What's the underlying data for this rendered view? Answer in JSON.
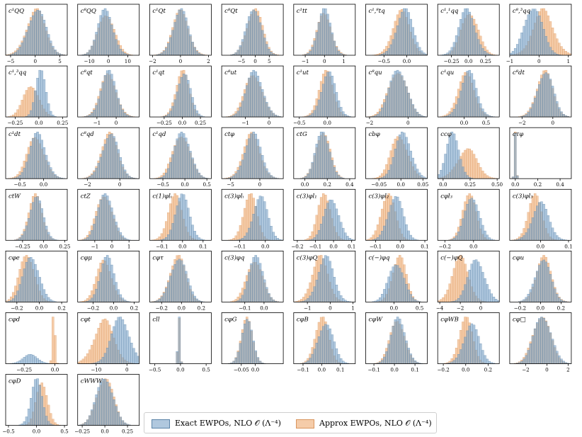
{
  "chart_data": {
    "type": "histogram-grid",
    "title": "",
    "colors": {
      "exact": "#7ba3c8",
      "approx": "#f1bb8c",
      "exact_edge": "#5b84a8",
      "approx_edge": "#d9955d"
    },
    "legend": {
      "position": "bottom",
      "entries": [
        {
          "key": "exact",
          "label": "Exact EWPOs, NLO 𝒪 (Λ⁻⁴)"
        },
        {
          "key": "approx",
          "label": "Approx EWPOs, NLO 𝒪 (Λ⁻⁴)"
        }
      ]
    },
    "panels": [
      {
        "name": "c¹QQ",
        "xlim": [
          -6,
          6.5
        ],
        "ticks": [
          -5,
          0,
          5
        ],
        "exact": {
          "mu": 0.3,
          "sigma": 1.8
        },
        "approx": {
          "mu": 0.1,
          "sigma": 1.9
        }
      },
      {
        "name": "c⁸QQ",
        "xlim": [
          -16,
          16
        ],
        "ticks": [
          -10,
          0,
          10
        ],
        "exact": {
          "mu": -1.5,
          "sigma": 4.0
        },
        "approx": {
          "mu": -1.0,
          "sigma": 4.2
        }
      },
      {
        "name": "c¹Qt",
        "xlim": [
          -2.2,
          2.2
        ],
        "ticks": [
          -2,
          0,
          2
        ],
        "exact": {
          "mu": 0.0,
          "sigma": 0.55
        },
        "approx": {
          "mu": 0.0,
          "sigma": 0.58
        }
      },
      {
        "name": "c⁸Qt",
        "xlim": [
          -12,
          10
        ],
        "ticks": [
          -5,
          0,
          5
        ],
        "exact": {
          "mu": -0.5,
          "sigma": 2.6
        },
        "approx": {
          "mu": -0.3,
          "sigma": 2.7
        }
      },
      {
        "name": "c¹tt",
        "xlim": [
          -1.6,
          1.6
        ],
        "ticks": [
          -1,
          0,
          1
        ],
        "exact": {
          "mu": 0.0,
          "sigma": 0.35
        },
        "approx": {
          "mu": 0.0,
          "sigma": 0.37
        }
      },
      {
        "name": "c¹,⁸tq",
        "xlim": [
          -0.9,
          0.45
        ],
        "ticks": [
          -0.5,
          0.0
        ],
        "exact": {
          "mu": -0.05,
          "sigma": 0.18
        },
        "approx": {
          "mu": -0.12,
          "sigma": 0.19
        }
      },
      {
        "name": "c¹,¹qq",
        "xlim": [
          -0.45,
          0.45
        ],
        "ticks": [
          -0.25,
          0.0,
          0.25
        ],
        "exact": {
          "mu": -0.02,
          "sigma": 0.12
        },
        "approx": {
          "mu": 0.02,
          "sigma": 0.12
        }
      },
      {
        "name": "c⁸,³qq",
        "xlim": [
          -1.0,
          1.1
        ],
        "ticks": [
          -1,
          0,
          1
        ],
        "exact": {
          "mu": -0.2,
          "sigma": 0.3
        },
        "approx": {
          "mu": 0.15,
          "sigma": 0.35
        }
      },
      {
        "name": "c¹,³qq",
        "xlim": [
          -0.35,
          0.3
        ],
        "ticks": [
          -0.25,
          0.0,
          0.25
        ],
        "exact": {
          "mu": 0.02,
          "sigma": 0.05
        },
        "approx": {
          "mu": -0.08,
          "sigma": 0.08
        }
      },
      {
        "name": "c⁸qt",
        "xlim": [
          -2.0,
          1.2
        ],
        "ticks": [
          -1,
          0
        ],
        "exact": {
          "mu": -0.4,
          "sigma": 0.4
        },
        "approx": {
          "mu": -0.4,
          "sigma": 0.42
        }
      },
      {
        "name": "c¹qt",
        "xlim": [
          -0.45,
          0.4
        ],
        "ticks": [
          -0.25,
          0.0,
          0.25
        ],
        "exact": {
          "mu": 0.02,
          "sigma": 0.09
        },
        "approx": {
          "mu": 0.0,
          "sigma": 0.09
        }
      },
      {
        "name": "c⁸ut",
        "xlim": [
          -2.0,
          0.6
        ],
        "ticks": [
          -1,
          0
        ],
        "exact": {
          "mu": -0.6,
          "sigma": 0.35
        },
        "approx": {
          "mu": -0.65,
          "sigma": 0.36
        }
      },
      {
        "name": "c¹ut",
        "xlim": [
          -0.6,
          0.5
        ],
        "ticks": [
          -0.5,
          0.0
        ],
        "exact": {
          "mu": 0.02,
          "sigma": 0.13
        },
        "approx": {
          "mu": -0.02,
          "sigma": 0.13
        }
      },
      {
        "name": "c⁸qu",
        "xlim": [
          -2.2,
          1.0
        ],
        "ticks": [
          -2,
          0
        ],
        "exact": {
          "mu": -0.5,
          "sigma": 0.45
        },
        "approx": {
          "mu": -0.55,
          "sigma": 0.47
        }
      },
      {
        "name": "c¹qu",
        "xlim": [
          -0.6,
          0.8
        ],
        "ticks": [
          0.0,
          0.5
        ],
        "exact": {
          "mu": 0.1,
          "sigma": 0.18
        },
        "approx": {
          "mu": 0.05,
          "sigma": 0.19
        }
      },
      {
        "name": "c⁸dt",
        "xlim": [
          -2.8,
          1.2
        ],
        "ticks": [
          -2,
          0
        ],
        "exact": {
          "mu": -0.5,
          "sigma": 0.5
        },
        "approx": {
          "mu": -0.55,
          "sigma": 0.52
        }
      },
      {
        "name": "c¹dt",
        "xlim": [
          -0.8,
          0.5
        ],
        "ticks": [
          -0.5,
          0.0
        ],
        "exact": {
          "mu": -0.12,
          "sigma": 0.17
        },
        "approx": {
          "mu": -0.16,
          "sigma": 0.18
        }
      },
      {
        "name": "c⁸qd",
        "xlim": [
          -2.6,
          1.2
        ],
        "ticks": [
          -2,
          0
        ],
        "exact": {
          "mu": -0.6,
          "sigma": 0.5
        },
        "approx": {
          "mu": -0.65,
          "sigma": 0.52
        }
      },
      {
        "name": "c¹qd",
        "xlim": [
          -0.8,
          0.6
        ],
        "ticks": [
          -0.5,
          0.0,
          0.5
        ],
        "exact": {
          "mu": -0.05,
          "sigma": 0.18
        },
        "approx": {
          "mu": -0.08,
          "sigma": 0.19
        }
      },
      {
        "name": "ctφ",
        "xlim": [
          -6.5,
          4.0
        ],
        "ticks": [
          -5,
          0
        ],
        "exact": {
          "mu": -1.2,
          "sigma": 1.4
        },
        "approx": {
          "mu": -1.4,
          "sigma": 1.45
        }
      },
      {
        "name": "ctG",
        "xlim": [
          -0.1,
          0.45
        ],
        "ticks": [
          0.0,
          0.2,
          0.4
        ],
        "exact": {
          "mu": 0.16,
          "sigma": 0.06
        },
        "approx": {
          "mu": 0.16,
          "sigma": 0.062
        }
      },
      {
        "name": "cbφ",
        "xlim": [
          -0.08,
          0.06
        ],
        "ticks": [
          -0.05,
          0.0,
          0.05
        ],
        "exact": {
          "mu": 0.006,
          "sigma": 0.018
        },
        "approx": {
          "mu": -0.003,
          "sigma": 0.019
        }
      },
      {
        "name": "ccφ",
        "xlim": [
          -0.05,
          0.52
        ],
        "ticks": [
          0.0,
          0.25,
          0.5
        ],
        "exact": {
          "mu": 0.09,
          "sigma": 0.06
        },
        "approx": {
          "mu": 0.22,
          "sigma": 0.09
        }
      },
      {
        "name": "cτφ",
        "xlim": [
          -0.05,
          0.5
        ],
        "ticks": [
          0.0,
          0.2,
          0.4
        ],
        "exact": {
          "mu": 0.0,
          "sigma": 0.008
        },
        "approx": {
          "mu": 0.0,
          "sigma": 0.008
        }
      },
      {
        "name": "ctW",
        "xlim": [
          -0.45,
          0.28
        ],
        "ticks": [
          -0.25,
          0.0,
          0.25
        ],
        "exact": {
          "mu": -0.09,
          "sigma": 0.08
        },
        "approx": {
          "mu": -0.1,
          "sigma": 0.08
        }
      },
      {
        "name": "ctZ",
        "xlim": [
          -2.0,
          1.6
        ],
        "ticks": [
          -1,
          0,
          1
        ],
        "exact": {
          "mu": -0.35,
          "sigma": 0.45
        },
        "approx": {
          "mu": -0.45,
          "sigma": 0.45
        }
      },
      {
        "name": "c(1)φlᵢ",
        "xlim": [
          -0.16,
          0.14
        ],
        "ticks": [
          -0.1,
          0.0,
          0.1
        ],
        "exact": {
          "mu": 0.0,
          "sigma": 0.035
        },
        "approx": {
          "mu": -0.035,
          "sigma": 0.035
        }
      },
      {
        "name": "c(3)φlᵢ",
        "xlim": [
          -0.17,
          0.07
        ],
        "ticks": [
          -0.1,
          0.0
        ],
        "exact": {
          "mu": -0.02,
          "sigma": 0.028
        },
        "approx": {
          "mu": -0.06,
          "sigma": 0.025
        }
      },
      {
        "name": "c(3)φl₁",
        "xlim": [
          -0.22,
          0.12
        ],
        "ticks": [
          -0.2,
          -0.1,
          0.0,
          0.1
        ],
        "exact": {
          "mu": -0.01,
          "sigma": 0.04
        },
        "approx": {
          "mu": -0.05,
          "sigma": 0.035
        }
      },
      {
        "name": "c(3)φl₂",
        "xlim": [
          -0.14,
          0.11
        ],
        "ticks": [
          -0.1,
          0.0,
          0.1
        ],
        "exact": {
          "mu": -0.02,
          "sigma": 0.03
        },
        "approx": {
          "mu": -0.05,
          "sigma": 0.028
        }
      },
      {
        "name": "cφl₃",
        "xlim": [
          -0.25,
          0.18
        ],
        "ticks": [
          -0.2,
          0.0
        ],
        "exact": {
          "mu": -0.01,
          "sigma": 0.05
        },
        "approx": {
          "mu": -0.03,
          "sigma": 0.045
        }
      },
      {
        "name": "c(3)φl₃",
        "xlim": [
          -0.11,
          0.11
        ],
        "ticks": [
          0.0,
          0.1
        ],
        "exact": {
          "mu": 0.0,
          "sigma": 0.03
        },
        "approx": {
          "mu": -0.02,
          "sigma": 0.025
        }
      },
      {
        "name": "cφe",
        "xlim": [
          -0.3,
          0.25
        ],
        "ticks": [
          -0.2,
          0.0,
          0.2
        ],
        "exact": {
          "mu": -0.07,
          "sigma": 0.07
        },
        "approx": {
          "mu": -0.11,
          "sigma": 0.065
        }
      },
      {
        "name": "cφμ",
        "xlim": [
          -0.35,
          0.25
        ],
        "ticks": [
          -0.2,
          0.0,
          0.2
        ],
        "exact": {
          "mu": -0.06,
          "sigma": 0.07
        },
        "approx": {
          "mu": -0.09,
          "sigma": 0.075
        }
      },
      {
        "name": "cφτ",
        "xlim": [
          -0.32,
          0.3
        ],
        "ticks": [
          -0.2,
          0.0,
          0.2
        ],
        "exact": {
          "mu": -0.03,
          "sigma": 0.08
        },
        "approx": {
          "mu": -0.04,
          "sigma": 0.08
        }
      },
      {
        "name": "c(3)φq",
        "xlim": [
          -0.22,
          0.1
        ],
        "ticks": [
          -0.1,
          0.0
        ],
        "exact": {
          "mu": -0.04,
          "sigma": 0.035
        },
        "approx": {
          "mu": -0.05,
          "sigma": 0.04
        }
      },
      {
        "name": "c(3)φQ",
        "xlim": [
          -1.6,
          1.1
        ],
        "ticks": [
          -1,
          0,
          1
        ],
        "exact": {
          "mu": -0.2,
          "sigma": 0.35
        },
        "approx": {
          "mu": -0.45,
          "sigma": 0.35
        }
      },
      {
        "name": "c(−)φq",
        "xlim": [
          -0.55,
          0.65
        ],
        "ticks": [
          0.0,
          0.5
        ],
        "exact": {
          "mu": 0.05,
          "sigma": 0.15
        },
        "approx": {
          "mu": 0.1,
          "sigma": 0.13
        }
      },
      {
        "name": "c(−)φQ",
        "xlim": [
          -4.2,
          1.8
        ],
        "ticks": [
          -4,
          -2,
          0
        ],
        "exact": {
          "mu": -0.4,
          "sigma": 0.8
        },
        "approx": {
          "mu": -2.0,
          "sigma": 0.8
        }
      },
      {
        "name": "cφu",
        "xlim": [
          -0.3,
          0.3
        ],
        "ticks": [
          -0.2,
          0.0,
          0.2
        ],
        "exact": {
          "mu": 0.02,
          "sigma": 0.075
        },
        "approx": {
          "mu": 0.03,
          "sigma": 0.075
        }
      },
      {
        "name": "cφd",
        "xlim": [
          -0.4,
          0.1
        ],
        "ticks": [
          -0.25,
          0.0
        ],
        "exact": {
          "mu": -0.2,
          "sigma": 0.06
        },
        "approx": {
          "mu": -0.01,
          "sigma": 0.01
        }
      },
      {
        "name": "cφt",
        "xlim": [
          -16,
          4
        ],
        "ticks": [
          -10,
          0
        ],
        "exact": {
          "mu": -2.0,
          "sigma": 3.0
        },
        "approx": {
          "mu": -7.5,
          "sigma": 3.2
        }
      },
      {
        "name": "cll",
        "xlim": [
          -0.6,
          0.6
        ],
        "ticks": [
          -0.5,
          0.0,
          0.5
        ],
        "exact": {
          "mu": -0.03,
          "sigma": 0.02
        },
        "approx": {
          "mu": -0.03,
          "sigma": 0.02
        }
      },
      {
        "name": "cφG",
        "xlim": [
          -0.12,
          0.1
        ],
        "ticks": [
          -0.05,
          0.0
        ],
        "exact": {
          "mu": -0.03,
          "sigma": 0.02
        },
        "approx": {
          "mu": -0.03,
          "sigma": 0.02
        }
      },
      {
        "name": "cφB",
        "xlim": [
          -0.15,
          0.18
        ],
        "ticks": [
          -0.1,
          0.0,
          0.1
        ],
        "exact": {
          "mu": 0.02,
          "sigma": 0.04
        },
        "approx": {
          "mu": 0.0,
          "sigma": 0.035
        }
      },
      {
        "name": "cφW",
        "xlim": [
          -0.14,
          0.16
        ],
        "ticks": [
          -0.1,
          0.0,
          0.1
        ],
        "exact": {
          "mu": 0.02,
          "sigma": 0.035
        },
        "approx": {
          "mu": 0.015,
          "sigma": 0.035
        }
      },
      {
        "name": "cφWB",
        "xlim": [
          -0.25,
          0.3
        ],
        "ticks": [
          -0.2,
          0.0,
          0.2
        ],
        "exact": {
          "mu": 0.05,
          "sigma": 0.07
        },
        "approx": {
          "mu": 0.0,
          "sigma": 0.06
        }
      },
      {
        "name": "cφ□",
        "xlim": [
          -3.5,
          2.3
        ],
        "ticks": [
          -2,
          0,
          2
        ],
        "exact": {
          "mu": -0.4,
          "sigma": 0.8
        },
        "approx": {
          "mu": -0.5,
          "sigma": 0.8
        }
      },
      {
        "name": "cφD",
        "xlim": [
          -0.55,
          0.55
        ],
        "ticks": [
          -0.5,
          0.0,
          0.5
        ],
        "exact": {
          "mu": 0.0,
          "sigma": 0.1
        },
        "approx": {
          "mu": 0.1,
          "sigma": 0.1
        }
      },
      {
        "name": "cWWW",
        "xlim": [
          -0.3,
          0.38
        ],
        "ticks": [
          -0.25,
          0.0,
          0.25
        ],
        "exact": {
          "mu": 0.0,
          "sigma": 0.09
        },
        "approx": {
          "mu": 0.0,
          "sigma": 0.09
        }
      }
    ]
  }
}
